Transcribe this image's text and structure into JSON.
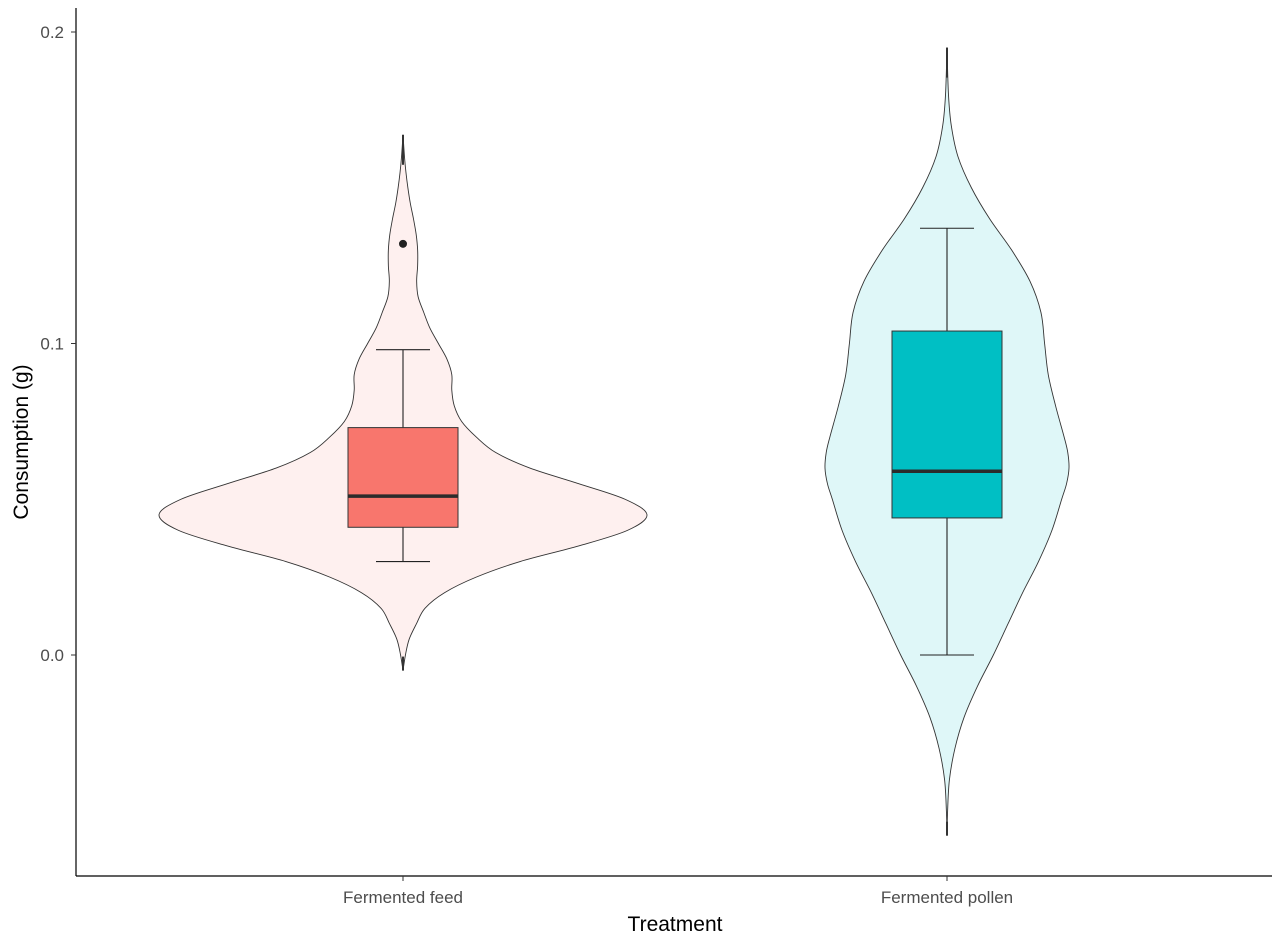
{
  "chart_data": {
    "type": "violin",
    "xlabel": "Treatment",
    "ylabel": "Consumption (g)",
    "ylim": [
      -0.07,
      0.2
    ],
    "y_ticks": [
      0.0,
      0.1,
      0.2
    ],
    "y_tick_labels": [
      "0.0",
      "0.1",
      "0.2"
    ],
    "categories": [
      "Fermented feed",
      "Fermented pollen"
    ],
    "grid": false,
    "legend": "none",
    "series": [
      {
        "name": "Fermented feed",
        "violin_color": "#FEF0EF",
        "box_color": "#F8766D",
        "violin_range": [
          -0.005,
          0.167
        ],
        "box": {
          "whisker_low": 0.03,
          "q1": 0.041,
          "median": 0.051,
          "q3": 0.073,
          "whisker_high": 0.098,
          "outliers": [
            0.132
          ]
        },
        "density_profile": [
          [
            -0.005,
            0.0
          ],
          [
            0.0,
            0.01
          ],
          [
            0.005,
            0.025
          ],
          [
            0.01,
            0.055
          ],
          [
            0.015,
            0.09
          ],
          [
            0.02,
            0.17
          ],
          [
            0.025,
            0.3
          ],
          [
            0.03,
            0.48
          ],
          [
            0.035,
            0.72
          ],
          [
            0.04,
            0.92
          ],
          [
            0.045,
            1.0
          ],
          [
            0.05,
            0.91
          ],
          [
            0.055,
            0.72
          ],
          [
            0.06,
            0.52
          ],
          [
            0.065,
            0.38
          ],
          [
            0.07,
            0.3
          ],
          [
            0.075,
            0.24
          ],
          [
            0.08,
            0.21
          ],
          [
            0.085,
            0.2
          ],
          [
            0.09,
            0.2
          ],
          [
            0.095,
            0.18
          ],
          [
            0.1,
            0.145
          ],
          [
            0.105,
            0.11
          ],
          [
            0.11,
            0.085
          ],
          [
            0.115,
            0.062
          ],
          [
            0.12,
            0.056
          ],
          [
            0.125,
            0.06
          ],
          [
            0.13,
            0.06
          ],
          [
            0.135,
            0.054
          ],
          [
            0.14,
            0.043
          ],
          [
            0.145,
            0.03
          ],
          [
            0.15,
            0.02
          ],
          [
            0.155,
            0.012
          ],
          [
            0.16,
            0.006
          ],
          [
            0.167,
            0.0
          ]
        ]
      },
      {
        "name": "Fermented pollen",
        "violin_color": "#DFF7F8",
        "box_color": "#00BFC4",
        "violin_range": [
          -0.058,
          0.195
        ],
        "box": {
          "whisker_low": 0.0,
          "q1": 0.044,
          "median": 0.059,
          "q3": 0.104,
          "whisker_high": 0.137,
          "outliers": []
        },
        "density_profile": [
          [
            -0.058,
            0.0
          ],
          [
            -0.05,
            0.005
          ],
          [
            -0.04,
            0.02
          ],
          [
            -0.03,
            0.065
          ],
          [
            -0.02,
            0.14
          ],
          [
            -0.01,
            0.25
          ],
          [
            0.0,
            0.38
          ],
          [
            0.01,
            0.5
          ],
          [
            0.02,
            0.62
          ],
          [
            0.03,
            0.75
          ],
          [
            0.04,
            0.86
          ],
          [
            0.05,
            0.94
          ],
          [
            0.055,
            0.98
          ],
          [
            0.06,
            1.0
          ],
          [
            0.065,
            0.99
          ],
          [
            0.07,
            0.96
          ],
          [
            0.08,
            0.89
          ],
          [
            0.09,
            0.83
          ],
          [
            0.1,
            0.8
          ],
          [
            0.11,
            0.77
          ],
          [
            0.12,
            0.68
          ],
          [
            0.13,
            0.53
          ],
          [
            0.14,
            0.35
          ],
          [
            0.15,
            0.2
          ],
          [
            0.16,
            0.09
          ],
          [
            0.17,
            0.035
          ],
          [
            0.18,
            0.012
          ],
          [
            0.195,
            0.0
          ]
        ]
      }
    ]
  }
}
